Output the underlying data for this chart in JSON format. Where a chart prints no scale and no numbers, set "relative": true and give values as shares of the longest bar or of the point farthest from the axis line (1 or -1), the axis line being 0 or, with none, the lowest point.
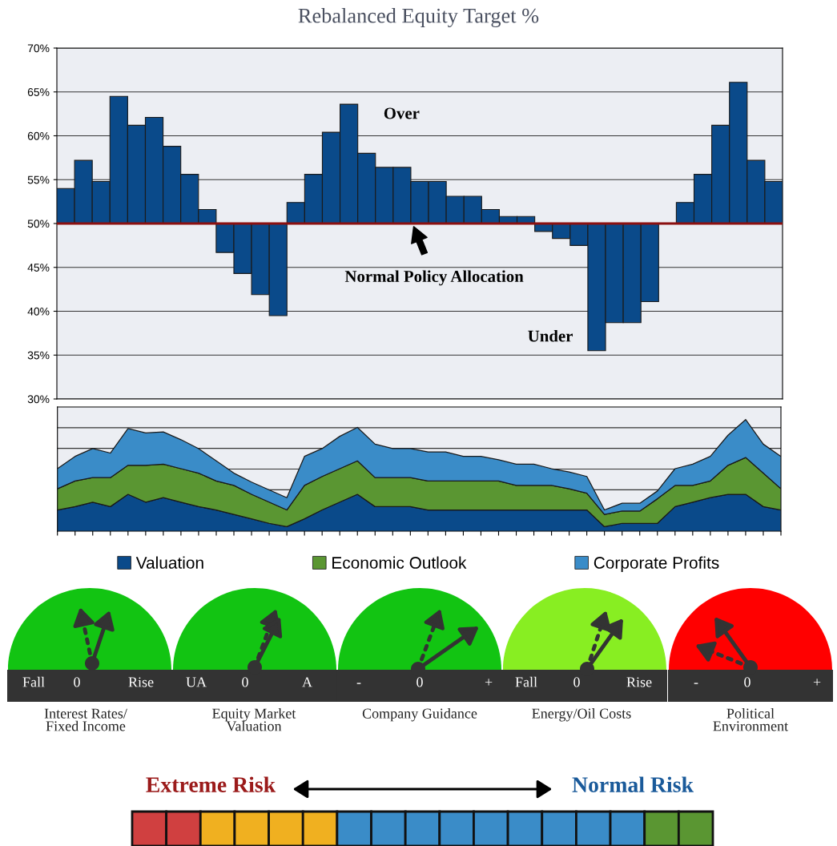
{
  "chart_data": [
    {
      "type": "bar",
      "title": "Rebalanced Equity Target %",
      "categories": [
        null,
        null,
        null,
        null,
        null,
        null,
        null,
        null,
        null,
        null,
        null,
        null,
        null,
        null,
        null,
        null,
        null,
        null,
        null,
        null,
        null,
        null,
        null,
        null,
        null,
        null,
        null,
        null,
        null,
        null,
        null,
        null,
        null,
        null,
        null,
        null,
        null,
        null,
        null,
        null,
        null
      ],
      "base": [
        50,
        50,
        50,
        50,
        50,
        50,
        50,
        50,
        50,
        50,
        50,
        50,
        50,
        50,
        50,
        50,
        50,
        50,
        50,
        50,
        50,
        50,
        50,
        50,
        50,
        50,
        50,
        50,
        50,
        50,
        50,
        50,
        50,
        50,
        null,
        50,
        50,
        50,
        50,
        50,
        50
      ],
      "values": [
        4.0,
        7.2,
        4.8,
        14.5,
        11.2,
        12.1,
        8.8,
        5.6,
        1.6,
        -3.3,
        -5.7,
        -8.1,
        -10.5,
        2.4,
        5.6,
        10.4,
        13.6,
        8.0,
        6.4,
        6.4,
        4.8,
        4.8,
        3.1,
        3.1,
        1.6,
        0.8,
        0.8,
        -0.9,
        -1.7,
        -2.5,
        -14.5,
        -11.3,
        -11.3,
        -8.9,
        null,
        2.4,
        5.6,
        11.2,
        16.1,
        7.2,
        4.8
      ],
      "color": "#0a4a8a",
      "ylim": [
        30,
        70
      ],
      "yticks": [
        {
          "value": 30,
          "label": "30%"
        },
        {
          "value": 35,
          "label": "35%"
        },
        {
          "value": 40,
          "label": "40%"
        },
        {
          "value": 45,
          "label": "45%"
        },
        {
          "value": 50,
          "label": "50%"
        },
        {
          "value": 55,
          "label": "55%"
        },
        {
          "value": 60,
          "label": "60%"
        },
        {
          "value": 65,
          "label": "65%"
        },
        {
          "value": 70,
          "label": "70%"
        }
      ],
      "grid": "y",
      "tick_labels": "y",
      "ref_lines": [
        {
          "axis": "y",
          "value": 50,
          "label": "Normal Policy Allocation",
          "color": "#8b1010"
        }
      ],
      "annotations": [
        "Over",
        "Under"
      ]
    },
    {
      "type": "area",
      "stacked": true,
      "relative": true,
      "categories": [
        null,
        null,
        null,
        null,
        null,
        null,
        null,
        null,
        null,
        null,
        null,
        null,
        null,
        null,
        null,
        null,
        null,
        null,
        null,
        null,
        null,
        null,
        null,
        null,
        null,
        null,
        null,
        null,
        null,
        null,
        null,
        null,
        null,
        null,
        null,
        null,
        null,
        null,
        null,
        null,
        null,
        null
      ],
      "series": [
        {
          "name": "Valuation",
          "color": "#0a4a8a",
          "values": [
            0.19,
            0.22,
            0.26,
            0.22,
            0.33,
            0.26,
            0.3,
            0.26,
            0.22,
            0.19,
            0.15,
            0.11,
            0.07,
            0.04,
            0.11,
            0.19,
            0.26,
            0.33,
            0.22,
            0.22,
            0.22,
            0.19,
            0.19,
            0.19,
            0.19,
            0.19,
            0.19,
            0.19,
            0.19,
            0.19,
            0.19,
            0.04,
            0.07,
            0.07,
            0.07,
            0.22,
            0.26,
            0.3,
            0.33,
            0.33,
            0.22,
            0.19
          ]
        },
        {
          "name": "Economic Outlook",
          "color": "#5a9632",
          "values": [
            0.19,
            0.23,
            0.22,
            0.26,
            0.26,
            0.33,
            0.3,
            0.3,
            0.3,
            0.26,
            0.26,
            0.22,
            0.19,
            0.15,
            0.3,
            0.3,
            0.3,
            0.3,
            0.26,
            0.26,
            0.26,
            0.26,
            0.26,
            0.26,
            0.26,
            0.26,
            0.22,
            0.22,
            0.22,
            0.19,
            0.15,
            0.11,
            0.11,
            0.11,
            0.22,
            0.19,
            0.15,
            0.15,
            0.26,
            0.33,
            0.3,
            0.19
          ]
        },
        {
          "name": "Corporate Profits",
          "color": "#3a8cc8",
          "values": [
            0.18,
            0.22,
            0.26,
            0.22,
            0.33,
            0.29,
            0.29,
            0.26,
            0.22,
            0.18,
            0.11,
            0.11,
            0.11,
            0.11,
            0.26,
            0.25,
            0.29,
            0.3,
            0.3,
            0.26,
            0.26,
            0.26,
            0.26,
            0.22,
            0.22,
            0.19,
            0.19,
            0.19,
            0.15,
            0.15,
            0.15,
            0.04,
            0.07,
            0.07,
            0.07,
            0.15,
            0.19,
            0.22,
            0.27,
            0.34,
            0.26,
            0.29
          ]
        }
      ],
      "grid": true,
      "legend": "bottom",
      "tick_labels": false
    },
    {
      "type": "other",
      "annotations": [
        "Fall",
        "0",
        "Rise",
        "Interest Rates/\nFixed Income",
        "UA",
        "0",
        "A",
        "Equity Market\nValuation",
        "-",
        "0",
        "+",
        "Company Guidance",
        "Fall",
        "0",
        "Rise",
        "Energy/Oil Costs",
        "-",
        "0",
        "+",
        "Political\nEnvironment",
        "Extreme Risk",
        "Normal Risk"
      ]
    }
  ]
}
